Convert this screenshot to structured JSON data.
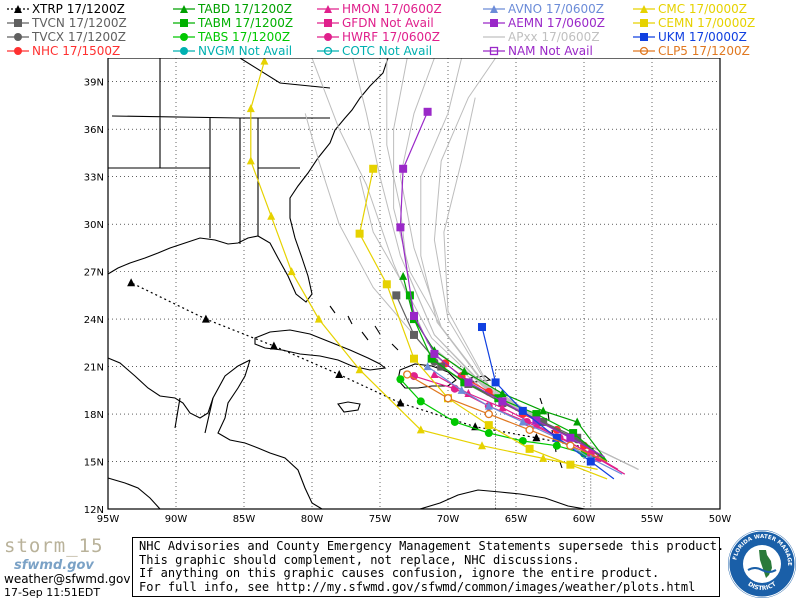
{
  "legend": [
    {
      "id": "xtrp",
      "label": "XTRP 17/1200Z",
      "color": "#000000",
      "marker": "triangle",
      "dash": true
    },
    {
      "id": "tvcn",
      "label": "TVCN 17/1200Z",
      "color": "#606060",
      "marker": "square"
    },
    {
      "id": "tvcx",
      "label": "TVCX 17/1200Z",
      "color": "#606060",
      "marker": "circle"
    },
    {
      "id": "nhc",
      "label": "NHC 17/1500Z",
      "color": "#ff3030",
      "marker": "circle"
    },
    {
      "id": "tabd",
      "label": "TABD 17/1200Z",
      "color": "#00a000",
      "marker": "triangle"
    },
    {
      "id": "tabm",
      "label": "TABM 17/1200Z",
      "color": "#00b000",
      "marker": "square"
    },
    {
      "id": "tabs",
      "label": "TABS 17/1200Z",
      "color": "#00c800",
      "marker": "circle"
    },
    {
      "id": "nvgm",
      "label": "NVGM Not Avail",
      "color": "#00b0b0",
      "marker": "circle"
    },
    {
      "id": "hmon",
      "label": "HMON 17/0600Z",
      "color": "#e0208c",
      "marker": "triangle"
    },
    {
      "id": "gfdn",
      "label": "GFDN Not Avail",
      "color": "#e0208c",
      "marker": "square"
    },
    {
      "id": "hwrf",
      "label": "HWRF 17/0600Z",
      "color": "#e0208c",
      "marker": "circle"
    },
    {
      "id": "cotc",
      "label": "COTC Not Avail",
      "color": "#00b0b0",
      "marker": "hollow-circle"
    },
    {
      "id": "avno",
      "label": "AVNO 17/0600Z",
      "color": "#6c8cd8",
      "marker": "triangle"
    },
    {
      "id": "aemn",
      "label": "AEMN 17/0600Z",
      "color": "#9a28c8",
      "marker": "square"
    },
    {
      "id": "apxx",
      "label": "APxx 17/0600Z",
      "color": "#c0c0c0",
      "marker": "line"
    },
    {
      "id": "nam",
      "label": "NAM Not Avail",
      "color": "#9a28c8",
      "marker": "hollow-square"
    },
    {
      "id": "cmc",
      "label": "CMC 17/0000Z",
      "color": "#e6d200",
      "marker": "triangle"
    },
    {
      "id": "cemn",
      "label": "CEMN 17/0000Z",
      "color": "#e6d200",
      "marker": "square"
    },
    {
      "id": "ukm",
      "label": "UKM 17/0000Z",
      "color": "#1040e0",
      "marker": "square"
    },
    {
      "id": "clp5",
      "label": "CLP5 17/1200Z",
      "color": "#e07820",
      "marker": "hollow-circle"
    }
  ],
  "map": {
    "lon_range": [
      -95,
      -50
    ],
    "lat_range": [
      12,
      40.5
    ],
    "lon_labels": [
      "95W",
      "90W",
      "85W",
      "80W",
      "75W",
      "70W",
      "65W",
      "60W",
      "55W",
      "50W"
    ],
    "lat_labels": [
      "12N",
      "15N",
      "18N",
      "21N",
      "24N",
      "27N",
      "30N",
      "33N",
      "36N",
      "39N"
    ]
  },
  "tracks": [
    {
      "model": "xtrp",
      "color": "#000000",
      "dash": true,
      "marker": "triangle",
      "points": [
        [
          -59.3,
          15.8
        ],
        [
          -63.5,
          16.5
        ],
        [
          -68.0,
          17.2
        ],
        [
          -73.5,
          18.7
        ],
        [
          -78.0,
          20.5
        ],
        [
          -82.8,
          22.3
        ],
        [
          -87.8,
          24.0
        ],
        [
          -93.3,
          26.3
        ]
      ]
    },
    {
      "model": "nhc",
      "color": "#ff3030",
      "marker": "circle",
      "points": [
        [
          -58.3,
          15.0
        ],
        [
          -60.0,
          16.0
        ],
        [
          -62.0,
          17.0
        ],
        [
          -64.5,
          18.0
        ],
        [
          -67.0,
          19.4
        ],
        [
          -69.0,
          20.4
        ],
        [
          -70.2,
          21.2
        ]
      ]
    },
    {
      "model": "tvcn",
      "color": "#606060",
      "marker": "square",
      "points": [
        [
          -58.3,
          15.0
        ],
        [
          -60.5,
          16.5
        ],
        [
          -63.0,
          17.5
        ],
        [
          -66.0,
          18.7
        ],
        [
          -68.5,
          19.9
        ],
        [
          -70.5,
          21.0
        ],
        [
          -72.5,
          23.0
        ],
        [
          -73.8,
          25.5
        ]
      ]
    },
    {
      "model": "tvcx",
      "color": "#606060",
      "marker": "circle",
      "points": [
        [
          -58.3,
          15.0
        ],
        [
          -60.5,
          16.4
        ],
        [
          -63.2,
          17.5
        ],
        [
          -66.0,
          18.7
        ],
        [
          -68.8,
          20.0
        ],
        [
          -71.0,
          21.3
        ]
      ]
    },
    {
      "model": "tabd",
      "color": "#00a000",
      "marker": "triangle",
      "points": [
        [
          -58.3,
          15.0
        ],
        [
          -60.5,
          17.5
        ],
        [
          -63.0,
          18.2
        ],
        [
          -66.0,
          19.3
        ],
        [
          -68.8,
          20.7
        ],
        [
          -71.0,
          22.0
        ],
        [
          -72.5,
          24.0
        ],
        [
          -73.3,
          26.7
        ]
      ]
    },
    {
      "model": "tabm",
      "color": "#00b000",
      "marker": "square",
      "points": [
        [
          -58.3,
          15.0
        ],
        [
          -60.8,
          16.8
        ],
        [
          -63.5,
          18.0
        ],
        [
          -66.3,
          19.0
        ],
        [
          -68.8,
          20.0
        ],
        [
          -71.2,
          21.5
        ],
        [
          -72.5,
          24.0
        ],
        [
          -72.8,
          25.5
        ]
      ]
    },
    {
      "model": "tabs",
      "color": "#00c800",
      "marker": "circle",
      "points": [
        [
          -58.3,
          15.0
        ],
        [
          -60.0,
          15.5
        ],
        [
          -62.0,
          16.0
        ],
        [
          -64.5,
          16.3
        ],
        [
          -67.0,
          16.8
        ],
        [
          -69.5,
          17.5
        ],
        [
          -72.0,
          18.8
        ],
        [
          -73.5,
          20.2
        ]
      ]
    },
    {
      "model": "hmon",
      "color": "#e0208c",
      "marker": "triangle",
      "points": [
        [
          -57.0,
          14.2
        ],
        [
          -59.0,
          15.2
        ],
        [
          -61.0,
          16.2
        ],
        [
          -63.5,
          17.3
        ],
        [
          -66.0,
          18.4
        ],
        [
          -68.5,
          19.3
        ],
        [
          -71.0,
          20.5
        ]
      ]
    },
    {
      "model": "hwrf",
      "color": "#e0208c",
      "marker": "circle",
      "points": [
        [
          -57.5,
          14.5
        ],
        [
          -59.5,
          15.5
        ],
        [
          -61.8,
          16.5
        ],
        [
          -64.2,
          17.5
        ],
        [
          -67.0,
          18.5
        ],
        [
          -69.5,
          19.6
        ],
        [
          -72.5,
          20.4
        ]
      ]
    },
    {
      "model": "avno",
      "color": "#6c8cd8",
      "marker": "triangle",
      "points": [
        [
          -57.2,
          14.2
        ],
        [
          -59.5,
          15.2
        ],
        [
          -62.0,
          16.5
        ],
        [
          -64.5,
          17.5
        ],
        [
          -67.0,
          18.5
        ],
        [
          -69.0,
          19.5
        ],
        [
          -71.5,
          21.0
        ]
      ]
    },
    {
      "model": "aemn",
      "color": "#9a28c8",
      "marker": "square",
      "points": [
        [
          -58.5,
          15.3
        ],
        [
          -61.0,
          16.5
        ],
        [
          -63.5,
          17.6
        ],
        [
          -66.0,
          18.8
        ],
        [
          -68.5,
          20.0
        ],
        [
          -71.0,
          21.8
        ],
        [
          -72.5,
          24.2
        ],
        [
          -73.5,
          29.8
        ],
        [
          -73.3,
          33.5
        ],
        [
          -71.5,
          37.1
        ]
      ]
    },
    {
      "model": "cmc",
      "color": "#e6d200",
      "marker": "triangle",
      "points": [
        [
          -59.0,
          14.5
        ],
        [
          -63.0,
          15.2
        ],
        [
          -67.5,
          16.0
        ],
        [
          -72.0,
          17.0
        ],
        [
          -76.5,
          20.8
        ],
        [
          -79.5,
          24.0
        ],
        [
          -81.5,
          27.0
        ],
        [
          -83.0,
          30.5
        ],
        [
          -84.5,
          34.0
        ],
        [
          -84.5,
          37.3
        ],
        [
          -83.5,
          40.3
        ]
      ]
    },
    {
      "model": "cemn",
      "color": "#e6d200",
      "marker": "square",
      "points": [
        [
          -58.3,
          13.9
        ],
        [
          -61.0,
          14.8
        ],
        [
          -64.0,
          15.8
        ],
        [
          -67.0,
          17.3
        ],
        [
          -70.0,
          19.0
        ],
        [
          -72.5,
          21.5
        ],
        [
          -74.5,
          26.2
        ],
        [
          -76.5,
          29.4
        ],
        [
          -75.5,
          33.5
        ]
      ]
    },
    {
      "model": "ukm",
      "color": "#1040e0",
      "marker": "square",
      "points": [
        [
          -57.8,
          13.9
        ],
        [
          -59.5,
          15.0
        ],
        [
          -62.0,
          16.5
        ],
        [
          -64.5,
          18.2
        ],
        [
          -66.5,
          20.0
        ],
        [
          -67.5,
          23.5
        ]
      ]
    },
    {
      "model": "clp5",
      "color": "#e07820",
      "marker": "hollow-circle",
      "points": [
        [
          -58.3,
          15.0
        ],
        [
          -61.0,
          16.0
        ],
        [
          -64.0,
          17.0
        ],
        [
          -67.0,
          18.0
        ],
        [
          -70.0,
          19.0
        ],
        [
          -73.0,
          20.5
        ]
      ]
    }
  ],
  "ensemble": [
    [
      [
        -56,
        14.5
      ],
      [
        -62,
        17
      ],
      [
        -67,
        19.5
      ],
      [
        -71,
        23
      ],
      [
        -73.5,
        28
      ],
      [
        -75,
        33
      ],
      [
        -76,
        37
      ],
      [
        -77,
        40.5
      ]
    ],
    [
      [
        -56,
        14.5
      ],
      [
        -62,
        17
      ],
      [
        -67,
        19.6
      ],
      [
        -70.5,
        23.5
      ],
      [
        -72.5,
        28.5
      ],
      [
        -73.5,
        33
      ],
      [
        -72.5,
        37
      ],
      [
        -71,
        40.5
      ]
    ],
    [
      [
        -56,
        14.5
      ],
      [
        -62,
        17
      ],
      [
        -67,
        19.3
      ],
      [
        -71.5,
        22.5
      ],
      [
        -74,
        27.5
      ],
      [
        -76,
        32.5
      ],
      [
        -78,
        36
      ],
      [
        -80,
        40.5
      ]
    ],
    [
      [
        -56,
        14.5
      ],
      [
        -62,
        17
      ],
      [
        -67,
        19.7
      ],
      [
        -70,
        24
      ],
      [
        -71,
        29
      ],
      [
        -70.5,
        34
      ],
      [
        -68.5,
        38
      ],
      [
        -66.5,
        40.5
      ]
    ],
    [
      [
        -56,
        14.5
      ],
      [
        -62,
        17
      ],
      [
        -67,
        19.4
      ],
      [
        -71,
        23
      ],
      [
        -73,
        27
      ],
      [
        -73.5,
        31
      ],
      [
        -74.5,
        35
      ],
      [
        -74.5,
        40.5
      ]
    ],
    [
      [
        -56,
        14.5
      ],
      [
        -62,
        17
      ],
      [
        -67,
        19.5
      ],
      [
        -70.8,
        23.8
      ],
      [
        -72,
        28
      ],
      [
        -72,
        33
      ],
      [
        -70,
        37
      ],
      [
        -69,
        40.5
      ]
    ],
    [
      [
        -56,
        14.5
      ],
      [
        -62,
        17
      ],
      [
        -67,
        19.2
      ],
      [
        -71.5,
        22
      ],
      [
        -75.5,
        26
      ],
      [
        -78,
        30
      ],
      [
        -79.5,
        34
      ],
      [
        -80.5,
        37
      ]
    ],
    [
      [
        -56,
        14.5
      ],
      [
        -62,
        17
      ],
      [
        -67,
        19.8
      ],
      [
        -70,
        24.5
      ],
      [
        -70.3,
        29.5
      ],
      [
        -69,
        34
      ],
      [
        -68,
        38
      ]
    ],
    [
      [
        -56,
        14.5
      ],
      [
        -62,
        17
      ],
      [
        -67,
        19.4
      ],
      [
        -71.2,
        22.8
      ],
      [
        -73.5,
        26.5
      ],
      [
        -75.5,
        29.5
      ],
      [
        -76.5,
        33
      ]
    ],
    [
      [
        -56,
        14.5
      ],
      [
        -62,
        17
      ],
      [
        -67,
        19.5
      ],
      [
        -70.5,
        23.5
      ],
      [
        -72.8,
        27
      ],
      [
        -74,
        31
      ],
      [
        -74,
        36
      ],
      [
        -73,
        40.5
      ]
    ]
  ],
  "footer": {
    "storm": "storm_15",
    "logo_text": "sfwmd.gov",
    "email": "weather@sfwmd.gov",
    "timestamp": "17-Sep 11:51EDT",
    "notice_lines": [
      "NHC Advisories and County Emergency Management Statements supersede this product.",
      "This graphic should complement, not replace, NHC discussions.",
      "If anything on this graphic causes confusion, ignore the entire product.",
      "For full info, see  http://my.sfwmd.gov/sfwmd/common/images/weather/plots.html"
    ],
    "seal_top": "SOUTH FLORIDA WATER MANAGEMENT",
    "seal_bottom": "DISTRICT"
  }
}
